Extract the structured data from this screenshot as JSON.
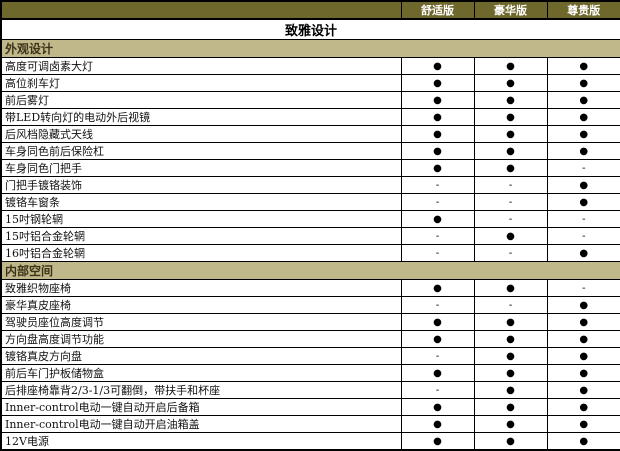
{
  "table": {
    "group_title": "致雅设计",
    "trims": [
      "舒适版",
      "豪华版",
      "尊贵版"
    ],
    "marks": {
      "included": "●",
      "not_available": "-"
    },
    "colors": {
      "header_bg": "#6F682D",
      "header_text": "#FFFFFF",
      "section_bg": "#C0B88A",
      "section_text": "#3B3317",
      "border": "#000000",
      "row_bg": "#FFFFFF"
    },
    "sections": [
      {
        "name": "外观设计",
        "rows": [
          {
            "label": "高度可调卤素大灯",
            "values": [
              "●",
              "●",
              "●"
            ]
          },
          {
            "label": "高位刹车灯",
            "values": [
              "●",
              "●",
              "●"
            ]
          },
          {
            "label": "前后雾灯",
            "values": [
              "●",
              "●",
              "●"
            ]
          },
          {
            "label": "带LED转向灯的电动外后视镜",
            "values": [
              "●",
              "●",
              "●"
            ]
          },
          {
            "label": "后风档隐藏式天线",
            "values": [
              "●",
              "●",
              "●"
            ]
          },
          {
            "label": "车身同色前后保险杠",
            "values": [
              "●",
              "●",
              "●"
            ]
          },
          {
            "label": "车身同色门把手",
            "values": [
              "●",
              "●",
              "-"
            ]
          },
          {
            "label": "门把手镀铬装饰",
            "values": [
              "-",
              "-",
              "●"
            ]
          },
          {
            "label": "镀铬车窗条",
            "values": [
              "-",
              "-",
              "●"
            ]
          },
          {
            "label": "15吋钢轮辋",
            "values": [
              "●",
              "-",
              "-"
            ]
          },
          {
            "label": "15吋铝合金轮辋",
            "values": [
              "-",
              "●",
              "-"
            ]
          },
          {
            "label": "16吋铝合金轮辋",
            "values": [
              "-",
              "-",
              "●"
            ]
          }
        ]
      },
      {
        "name": "内部空间",
        "rows": [
          {
            "label": "致雅织物座椅",
            "values": [
              "●",
              "●",
              "-"
            ]
          },
          {
            "label": "豪华真皮座椅",
            "values": [
              "-",
              "-",
              "●"
            ]
          },
          {
            "label": "驾驶员座位高度调节",
            "values": [
              "●",
              "●",
              "●"
            ]
          },
          {
            "label": "方向盘高度调节功能",
            "values": [
              "●",
              "●",
              "●"
            ]
          },
          {
            "label": "镀铬真皮方向盘",
            "values": [
              "-",
              "●",
              "●"
            ]
          },
          {
            "label": "前后车门护板储物盒",
            "values": [
              "●",
              "●",
              "●"
            ]
          },
          {
            "label": "后排座椅靠背2/3-1/3可翻倒，带扶手和杯座",
            "values": [
              "-",
              "●",
              "●"
            ]
          },
          {
            "label": "Inner-control电动一键自动开启后备箱",
            "values": [
              "●",
              "●",
              "●"
            ]
          },
          {
            "label": "Inner-control电动一键自动开启油箱盖",
            "values": [
              "●",
              "●",
              "●"
            ]
          },
          {
            "label": "12V电源",
            "values": [
              "●",
              "●",
              "●"
            ]
          }
        ]
      }
    ]
  }
}
